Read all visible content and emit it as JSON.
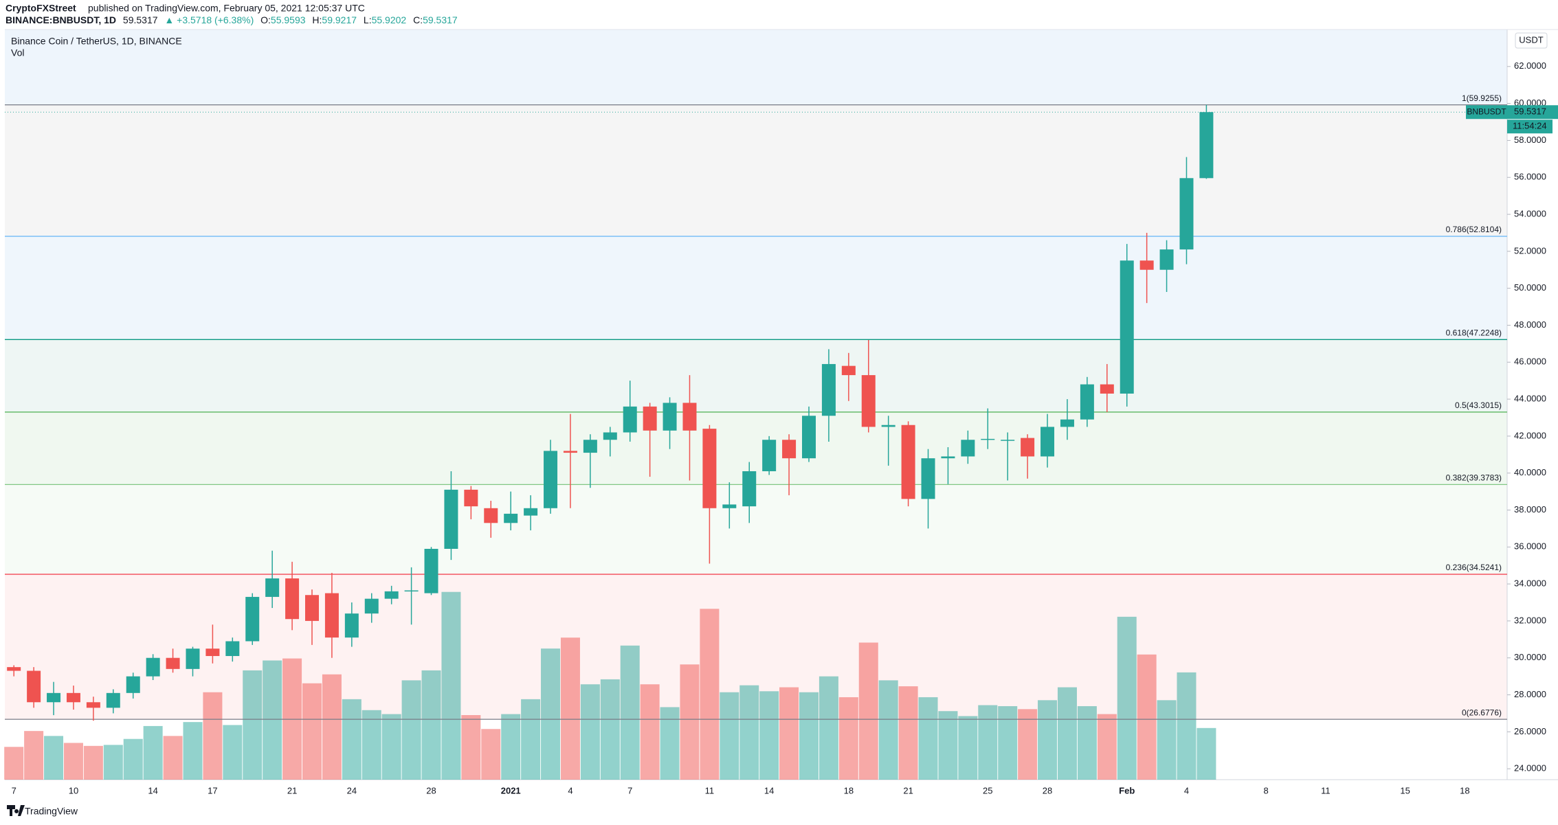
{
  "header": {
    "author": "CryptoFXStreet",
    "published": "published on TradingView.com, February 05, 2021 12:05:37 UTC",
    "symbol": "BINANCE:BNBUSDT, 1D",
    "change": "▲ +3.5718 (+6.38%)",
    "ohlc_labels": [
      "O:",
      "H:",
      "L:",
      "C:"
    ]
  },
  "footer": {
    "logo": "TradingView"
  },
  "chart_data": {
    "type": "candlestick",
    "title": "Binance Coin / TetherUS, 1D, BINANCE",
    "currency": "USDT",
    "last_price_label": "BNBUSDT",
    "countdown": "11:54:24",
    "up_color": "#26a69a",
    "down_color": "#ef5350",
    "categories": [
      "7",
      null,
      null,
      "10",
      null,
      null,
      null,
      "14",
      null,
      null,
      "17",
      null,
      null,
      null,
      "21",
      null,
      null,
      "24",
      null,
      null,
      null,
      "28",
      null,
      null,
      null,
      "2021",
      null,
      null,
      "4",
      null,
      null,
      "7",
      null,
      null,
      null,
      "11",
      null,
      null,
      "14",
      null,
      null,
      null,
      "18",
      null,
      null,
      "21",
      null,
      null,
      null,
      "25",
      null,
      null,
      "28",
      null,
      null,
      null,
      "Feb",
      null,
      null,
      "4",
      null,
      null,
      null,
      "8",
      null,
      null,
      "11",
      null,
      null,
      null,
      "15",
      null,
      null,
      "18"
    ],
    "open": [
      29.5,
      29.3,
      27.6,
      28.1,
      27.6,
      27.3,
      28.1,
      29.0,
      30.0,
      29.4,
      30.5,
      30.1,
      30.9,
      33.3,
      34.3,
      33.4,
      33.5,
      31.1,
      32.4,
      33.2,
      33.6,
      33.5,
      35.9,
      39.1,
      38.1,
      37.3,
      37.7,
      38.1,
      41.2,
      41.1,
      41.8,
      42.2,
      43.6,
      42.3,
      43.8,
      42.4,
      38.1,
      38.2,
      40.1,
      41.8,
      40.8,
      43.1,
      45.8,
      45.3,
      42.5,
      42.6,
      38.6,
      40.8,
      40.9,
      41.8,
      41.8,
      41.9,
      40.9,
      42.5,
      42.9,
      44.8,
      44.3,
      51.5,
      51.0,
      52.1,
      55.9593,
      null,
      null,
      null,
      null,
      null,
      null,
      null,
      null,
      null,
      null,
      null,
      null,
      null
    ],
    "high": [
      29.6,
      29.5,
      28.7,
      28.5,
      27.9,
      28.3,
      29.2,
      30.2,
      30.5,
      30.6,
      31.8,
      31.1,
      33.5,
      35.8,
      35.2,
      33.7,
      34.6,
      33.0,
      33.5,
      33.9,
      34.9,
      36.0,
      40.1,
      39.3,
      38.5,
      39.0,
      38.8,
      41.8,
      43.2,
      42.1,
      42.5,
      45.0,
      43.8,
      44.1,
      45.3,
      42.6,
      39.5,
      40.6,
      42.0,
      42.1,
      43.6,
      46.7,
      46.5,
      47.2,
      43.1,
      42.8,
      41.3,
      41.4,
      42.3,
      43.5,
      42.2,
      42.1,
      43.2,
      44.0,
      45.2,
      45.9,
      52.4,
      53.0,
      52.6,
      57.1,
      59.9217,
      null,
      null,
      null,
      null,
      null,
      null,
      null,
      null,
      null,
      null,
      null,
      null,
      null
    ],
    "low": [
      29.0,
      27.3,
      26.9,
      27.2,
      26.6,
      27.0,
      27.8,
      28.8,
      29.2,
      29.0,
      29.7,
      29.8,
      30.7,
      32.7,
      31.5,
      30.7,
      30.0,
      30.6,
      31.9,
      32.9,
      31.8,
      33.4,
      35.3,
      37.5,
      36.5,
      36.9,
      36.9,
      37.8,
      38.1,
      39.2,
      40.9,
      41.7,
      39.8,
      41.3,
      39.6,
      35.1,
      37.0,
      37.3,
      39.9,
      38.8,
      40.6,
      41.7,
      43.9,
      42.2,
      40.4,
      38.2,
      37.0,
      39.4,
      40.5,
      41.3,
      39.6,
      39.7,
      40.3,
      41.8,
      42.5,
      43.3,
      43.6,
      49.2,
      49.8,
      51.3,
      55.9202,
      null,
      null,
      null,
      null,
      null,
      null,
      null,
      null,
      null,
      null,
      null,
      null,
      null
    ],
    "close": [
      29.3,
      27.6,
      28.1,
      27.6,
      27.3,
      28.1,
      29.0,
      30.0,
      29.4,
      30.5,
      30.1,
      30.9,
      33.3,
      34.3,
      32.1,
      32.0,
      31.1,
      32.4,
      33.2,
      33.6,
      33.65,
      35.9,
      39.1,
      38.2,
      37.3,
      37.8,
      38.1,
      41.2,
      41.1,
      41.8,
      42.2,
      43.6,
      42.3,
      43.8,
      42.3,
      38.1,
      38.3,
      40.1,
      41.8,
      40.8,
      43.1,
      45.9,
      45.3,
      42.5,
      42.6,
      38.6,
      40.8,
      40.9,
      41.8,
      41.85,
      41.8,
      40.9,
      42.5,
      42.9,
      44.8,
      44.3,
      51.5,
      51.0,
      52.1,
      55.96,
      59.5317,
      null,
      null,
      null,
      null,
      null,
      null,
      null,
      null,
      null,
      null,
      null,
      null,
      null
    ],
    "volume": {
      "name": "Vol",
      "values": [
        33,
        49,
        44,
        37,
        34,
        35,
        41,
        54,
        44,
        58,
        88,
        55,
        110,
        120,
        122,
        97,
        106,
        81,
        70,
        66,
        100,
        110,
        189,
        65,
        51,
        66,
        81,
        132,
        143,
        96,
        101,
        135,
        96,
        73,
        116,
        172,
        88,
        95,
        89,
        93,
        88,
        104,
        83,
        138,
        100,
        94,
        83,
        69,
        64,
        75,
        74,
        71,
        80,
        93,
        74,
        66,
        164,
        126,
        80,
        108,
        52,
        null,
        null,
        null,
        null,
        null,
        null,
        null,
        null,
        null,
        null,
        null,
        null,
        null
      ]
    },
    "ylim": [
      23.41,
      64.0
    ],
    "yticks": [
      {
        "value": 24,
        "label": "24.0000"
      },
      {
        "value": 26,
        "label": "26.0000"
      },
      {
        "value": 28,
        "label": "28.0000"
      },
      {
        "value": 30,
        "label": "30.0000"
      },
      {
        "value": 32,
        "label": "32.0000"
      },
      {
        "value": 34,
        "label": "34.0000"
      },
      {
        "value": 36,
        "label": "36.0000"
      },
      {
        "value": 38,
        "label": "38.0000"
      },
      {
        "value": 40,
        "label": "40.0000"
      },
      {
        "value": 42,
        "label": "42.0000"
      },
      {
        "value": 44,
        "label": "44.0000"
      },
      {
        "value": 46,
        "label": "46.0000"
      },
      {
        "value": 48,
        "label": "48.0000"
      },
      {
        "value": 50,
        "label": "50.0000"
      },
      {
        "value": 52,
        "label": "52.0000"
      },
      {
        "value": 54,
        "label": "54.0000"
      },
      {
        "value": 56,
        "label": "56.0000"
      },
      {
        "value": 58,
        "label": "58.0000"
      },
      {
        "value": 60,
        "label": "60.0000"
      },
      {
        "value": 62,
        "label": "62.0000"
      }
    ],
    "fib_levels": [
      {
        "value": 59.9255,
        "label": "1(59.9255)",
        "color": "#787b86",
        "band": "#f5f5f5"
      },
      {
        "value": 52.8104,
        "label": "0.786(52.8104)",
        "color": "#64b5f6",
        "band": "#eff6fc"
      },
      {
        "value": 47.2248,
        "label": "0.618(47.2248)",
        "color": "#089981",
        "band": "#eef6f4"
      },
      {
        "value": 43.3015,
        "label": "0.5(43.3015)",
        "color": "#4caf50",
        "band": "#f0f8f0"
      },
      {
        "value": 39.3783,
        "label": "0.382(39.3783)",
        "color": "#81c784",
        "band": "#f6fbf6"
      },
      {
        "value": 34.5241,
        "label": "0.236(34.5241)",
        "color": "#f23645",
        "band": "#fef2f2"
      },
      {
        "value": 26.6776,
        "label": "0(26.6776)",
        "color": "#787b86",
        "band": null
      }
    ],
    "top_band": "#eef5fc"
  }
}
